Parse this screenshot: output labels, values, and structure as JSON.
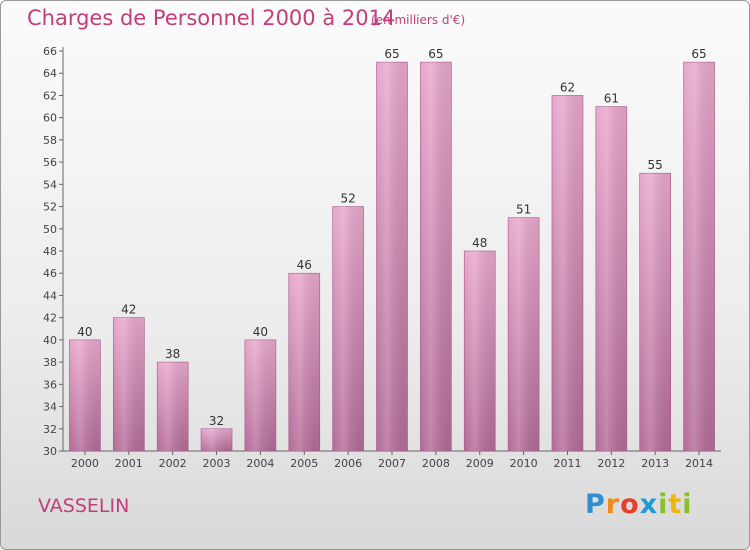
{
  "header": {
    "title": "Charges de Personnel 2000 à 2014",
    "subtitle": "(en milliers d'€)"
  },
  "footer": {
    "town": "VASSELIN",
    "logo": [
      "P",
      "r",
      "o",
      "x",
      "i",
      "t",
      "i"
    ]
  },
  "colors": {
    "accent": "#c33d78",
    "bar_top": "#e8a7cc",
    "bar_bottom": "#b36b97"
  },
  "chart_data": {
    "type": "bar",
    "title": "Charges de Personnel 2000 à 2014",
    "subtitle": "(en milliers d'€)",
    "xlabel": "",
    "ylabel": "",
    "categories": [
      "2000",
      "2001",
      "2002",
      "2003",
      "2004",
      "2005",
      "2006",
      "2007",
      "2008",
      "2009",
      "2010",
      "2011",
      "2012",
      "2013",
      "2014"
    ],
    "values": [
      40,
      42,
      38,
      32,
      40,
      46,
      52,
      65,
      65,
      48,
      51,
      62,
      61,
      55,
      65
    ],
    "ylim": [
      30,
      66
    ],
    "yticks": [
      30,
      32,
      34,
      36,
      38,
      40,
      42,
      44,
      46,
      48,
      50,
      52,
      54,
      56,
      58,
      60,
      62,
      64,
      66
    ],
    "grid": false,
    "data_labels": true
  }
}
